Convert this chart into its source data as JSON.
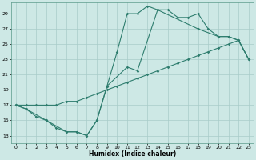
{
  "xlabel": "Humidex (Indice chaleur)",
  "bg_color": "#cde8e5",
  "grid_color": "#a8ccc9",
  "line_color": "#2e7d6e",
  "xlim": [
    -0.5,
    23.5
  ],
  "ylim": [
    12,
    30.5
  ],
  "yticks": [
    13,
    15,
    17,
    19,
    21,
    23,
    25,
    27,
    29
  ],
  "xticks": [
    0,
    1,
    2,
    3,
    4,
    5,
    6,
    7,
    8,
    9,
    10,
    11,
    12,
    13,
    14,
    15,
    16,
    17,
    18,
    19,
    20,
    21,
    22,
    23
  ],
  "series": [
    {
      "x": [
        0,
        1,
        2,
        3,
        4,
        5,
        6,
        7,
        8,
        9,
        10,
        11,
        12,
        13,
        14,
        15,
        16,
        17,
        18,
        19,
        20,
        21,
        22,
        23
      ],
      "y": [
        17,
        16.5,
        15.5,
        15,
        14,
        13.5,
        13.5,
        13,
        15,
        19.5,
        24,
        29,
        29,
        30,
        29.5,
        29.5,
        28.5,
        28.5,
        29,
        27,
        26,
        26,
        25.5,
        23
      ]
    },
    {
      "x": [
        0,
        1,
        2,
        3,
        4,
        5,
        6,
        7,
        8,
        9,
        10,
        11,
        12,
        13,
        14,
        15,
        16,
        17,
        18,
        19,
        20,
        21,
        22,
        23
      ],
      "y": [
        17,
        17,
        17,
        17,
        17,
        17.5,
        17.5,
        18,
        18.5,
        19,
        19.5,
        20,
        20.5,
        21,
        21.5,
        22,
        22.5,
        23,
        23.5,
        24,
        24.5,
        25,
        25.5,
        23
      ]
    },
    {
      "x": [
        0,
        1,
        3,
        5,
        6,
        7,
        8,
        9,
        11,
        12,
        14,
        18,
        20,
        21,
        22,
        23
      ],
      "y": [
        17,
        16.5,
        15,
        13.5,
        13.5,
        13,
        15,
        19.5,
        22,
        21.5,
        29.5,
        27,
        26,
        26,
        25.5,
        23
      ]
    }
  ]
}
